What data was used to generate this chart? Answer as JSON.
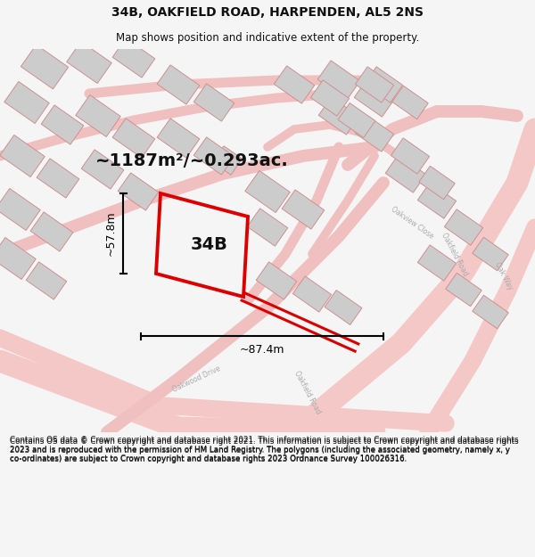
{
  "title_line1": "34B, OAKFIELD ROAD, HARPENDEN, AL5 2NS",
  "title_line2": "Map shows position and indicative extent of the property.",
  "footer_text": "Contains OS data © Crown copyright and database right 2021. This information is subject to Crown copyright and database rights 2023 and is reproduced with the permission of HM Land Registry. The polygons (including the associated geometry, namely x, y co-ordinates) are subject to Crown copyright and database rights 2023 Ordnance Survey 100026316.",
  "area_text": "~1187m²/~0.293ac.",
  "label_34B": "34B",
  "dim_width": "~87.4m",
  "dim_height": "~57.8m",
  "bg_color": "#f5f5f5",
  "map_bg": "#ffffff",
  "road_color": "#e8a0a0",
  "road_color2": "#f0c0c0",
  "building_color": "#cccccc",
  "building_edge": "#d09090",
  "property_color": "#dd0000",
  "dim_color": "#000000",
  "title_color": "#111111",
  "footer_color": "#111111",
  "road_label_color": "#aaaaaa",
  "map_street_lw": 1.2,
  "title_fontsize": 10,
  "subtitle_fontsize": 8.5,
  "area_fontsize": 14,
  "label_fontsize": 14,
  "dim_fontsize": 9,
  "footer_fontsize": 6.3
}
